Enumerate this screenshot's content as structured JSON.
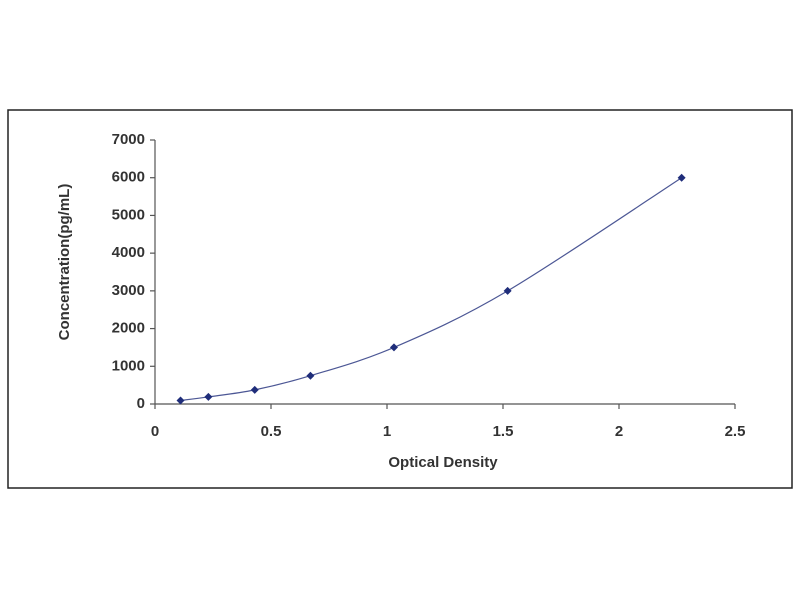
{
  "chart_data": {
    "type": "scatter",
    "x_label": "Optical Density",
    "y_label": "Concentration(pg/mL)",
    "series": [
      {
        "color": "#1f2d7a",
        "x": [
          0.11,
          0.23,
          0.43,
          0.67,
          1.03,
          1.52,
          2.27
        ],
        "values": [
          94,
          188,
          375,
          750,
          1500,
          3000,
          6000
        ]
      }
    ],
    "smooth_line": true,
    "xlim": [
      0,
      2.5
    ],
    "xticks": [
      0,
      0.5,
      1,
      1.5,
      2,
      2.5
    ],
    "ylim": [
      0,
      7000
    ],
    "yticks": [
      0,
      1000,
      2000,
      3000,
      4000,
      5000,
      6000,
      7000
    ]
  }
}
